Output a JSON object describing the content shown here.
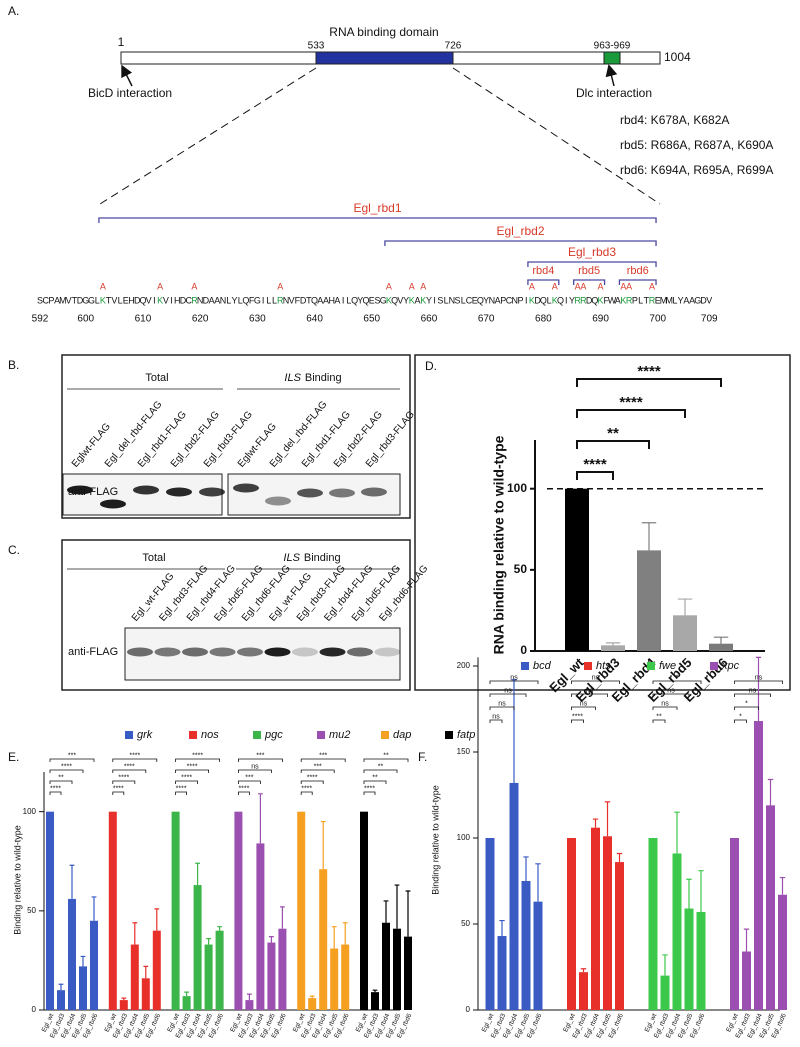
{
  "panel_labels": [
    "A.",
    "B.",
    "C.",
    "D.",
    "E.",
    "F."
  ],
  "panel_a": {
    "domain_label": "RNA binding domain",
    "positions": {
      "start": "1",
      "domain_start": "533",
      "domain_end": "726",
      "dlc_site": "963-969",
      "end": "1004"
    },
    "interactions": [
      "BicD interaction",
      "Dlc interaction"
    ],
    "mutant_notes": [
      "rbd4: K678A, K682A",
      "rbd5: R686A, R687A, K690A",
      "rbd6: K694A, R695A, R699A"
    ],
    "constructs": [
      "Egl_rbd1",
      "Egl_rbd2",
      "Egl_rbd3",
      "rbd4",
      "rbd5",
      "rbd6"
    ],
    "sequence": [
      {
        "text": "SCPAMVTDGGL"
      },
      {
        "text": "K",
        "mutation": "A"
      },
      {
        "text": "TVLEHDQVI"
      },
      {
        "text": "K",
        "mutation": "A"
      },
      {
        "text": "VIHDC"
      },
      {
        "text": "R",
        "mutation": "A"
      },
      {
        "text": "NDAANLYLQFGILL"
      },
      {
        "text": "R",
        "mutation": "A"
      },
      {
        "text": "NVFDTQAAHAILQYQESG"
      },
      {
        "text": "K",
        "mutation": "A"
      },
      {
        "text": "QVY"
      },
      {
        "text": "K",
        "mutation": "A"
      },
      {
        "text": "A"
      },
      {
        "text": "K",
        "mutation": "A"
      },
      {
        "text": "YISLNSLCEQYNAPCNPI"
      },
      {
        "text": "K",
        "mutation": "A"
      },
      {
        "text": "DQL"
      },
      {
        "text": "K",
        "mutation": "A"
      },
      {
        "text": "QIY"
      },
      {
        "text": "R",
        "mutation": "A"
      },
      {
        "text": "R",
        "mutation": "A"
      },
      {
        "text": "DQ"
      },
      {
        "text": "K",
        "mutation": "A"
      },
      {
        "text": "FWA"
      },
      {
        "text": "K",
        "mutation": "A"
      },
      {
        "text": "R",
        "mutation": "A"
      },
      {
        "text": "PLT"
      },
      {
        "text": "R",
        "mutation": "A"
      },
      {
        "text": "EMMLYAAGDV"
      }
    ],
    "ruler": [
      592,
      600,
      610,
      620,
      630,
      640,
      650,
      660,
      670,
      680,
      690,
      700,
      709
    ]
  },
  "panel_b": {
    "headers": {
      "total": "Total",
      "binding_italic": "ILS",
      "binding": "Binding"
    },
    "lanes": [
      "Eglwt-FLAG",
      "Egl_del_rbd-FLAG",
      "Egl_rbd1-FLAG",
      "Egl_rbd2-FLAG",
      "Egl_rbd3-FLAG",
      "Eglwt-FLAG",
      "Egl_del_rbd-FLAG",
      "Egl_rbd1-FLAG",
      "Egl_rbd2-FLAG",
      "Egl_rbd3-FLAG"
    ],
    "antibody": "anti-FLAG"
  },
  "panel_c": {
    "headers": {
      "total": "Total",
      "binding_italic": "ILS",
      "binding": "Binding"
    },
    "lanes": [
      "Egl_wt-FLAG",
      "Egl_rbd3-FLAG",
      "Egl_rbd4-FLAG",
      "Egl_rbd5-FLAG",
      "Egl_rbd6-FLAG",
      "Egl_wt-FLAG",
      "Egl_rbd3-FLAG",
      "Egl_rbd4-FLAG",
      "Egl_rbd5-FLAG",
      "Egl_rbd6-FLAG"
    ],
    "antibody": "anti-FLAG"
  },
  "chart_data": [
    {
      "type": "bar",
      "ylabel": "RNA binding relative to wild-type",
      "categories": [
        "Egl_wt",
        "Egl_rbd3",
        "Egl_rbd4",
        "Egl_rbd5",
        "Egl_rbd6"
      ],
      "values": [
        100,
        3.5,
        62,
        22,
        4.5
      ],
      "errors": [
        null,
        1.5,
        17,
        10,
        4
      ],
      "colors": [
        "#000000",
        "#a8a8a8",
        "#808080",
        "#a8a8a8",
        "#7a7a7a"
      ],
      "significance": [
        null,
        "****",
        "**",
        "****",
        "****"
      ],
      "reference_line": 100,
      "ylim": [
        0,
        130
      ],
      "yticks": [
        0,
        50,
        100
      ]
    },
    {
      "type": "bar",
      "ylabel": "Binding relative to wild-type",
      "categories": [
        "Egl_wt",
        "Egl_rbd3",
        "Egl_rbd4",
        "Egl_rbd5",
        "Egl_rbd6"
      ],
      "series": [
        {
          "name": "grk",
          "color": "#3b5bc4",
          "values": [
            100,
            10,
            56,
            22,
            45
          ],
          "errors": [
            null,
            3,
            17,
            5,
            12
          ],
          "significance": [
            null,
            "****",
            "**",
            "****",
            "***"
          ]
        },
        {
          "name": "nos",
          "color": "#e8302a",
          "values": [
            100,
            5,
            33,
            16,
            40
          ],
          "errors": [
            null,
            1,
            11,
            6,
            11
          ],
          "significance": [
            null,
            "****",
            "****",
            "****",
            "****"
          ]
        },
        {
          "name": "pgc",
          "color": "#3cb54a",
          "values": [
            100,
            7,
            63,
            33,
            40
          ],
          "errors": [
            null,
            2,
            11,
            3,
            2
          ],
          "significance": [
            null,
            "****",
            "****",
            "****",
            "****"
          ]
        },
        {
          "name": "mu2",
          "color": "#9b4fb0",
          "values": [
            100,
            5,
            84,
            34,
            41
          ],
          "errors": [
            null,
            3,
            25,
            3,
            11
          ],
          "significance": [
            null,
            "****",
            "***",
            "ns",
            "***"
          ]
        },
        {
          "name": "dap",
          "color": "#f5a020",
          "values": [
            100,
            6,
            71,
            31,
            33
          ],
          "errors": [
            null,
            1,
            24,
            11,
            11
          ],
          "significance": [
            null,
            "****",
            "****",
            "***",
            "***"
          ]
        },
        {
          "name": "fatp",
          "color": "#000000",
          "values": [
            100,
            9,
            44,
            41,
            37
          ],
          "errors": [
            null,
            1,
            11,
            22,
            23
          ],
          "significance": [
            null,
            "****",
            "**",
            "**",
            "**"
          ]
        }
      ],
      "ylim": [
        0,
        120
      ],
      "yticks": [
        0,
        50,
        100
      ]
    },
    {
      "type": "bar",
      "ylabel": "Binding relative to wild-type",
      "categories": [
        "Egl_wt",
        "Egl_rbd3",
        "Egl_rbd4",
        "Egl_rbd5",
        "Egl_rbd6"
      ],
      "series": [
        {
          "name": "bcd",
          "color": "#3b5bc4",
          "values": [
            100,
            43,
            132,
            75,
            63
          ],
          "errors": [
            null,
            9,
            60,
            14,
            22
          ],
          "significance": [
            null,
            "ns",
            "ns",
            "ns",
            "ns"
          ]
        },
        {
          "name": "hts",
          "color": "#e8302a",
          "values": [
            100,
            22,
            106,
            101,
            86
          ],
          "errors": [
            null,
            2,
            5,
            20,
            5
          ],
          "significance": [
            null,
            "****",
            "ns",
            "ns",
            "ns"
          ]
        },
        {
          "name": "fwe",
          "color": "#3cc84a",
          "values": [
            100,
            20,
            91,
            59,
            57
          ],
          "errors": [
            null,
            12,
            24,
            17,
            24
          ],
          "significance": [
            null,
            "**",
            "ns",
            "ns",
            "*"
          ]
        },
        {
          "name": "xpc",
          "color": "#9b4fb0",
          "values": [
            100,
            34,
            168,
            119,
            67
          ],
          "errors": [
            null,
            13,
            37,
            15,
            10
          ],
          "significance": [
            null,
            "*",
            "*",
            "ns",
            "ns"
          ]
        }
      ],
      "ylim": [
        0,
        205
      ],
      "yticks": [
        0,
        50,
        100,
        150,
        200
      ]
    }
  ]
}
